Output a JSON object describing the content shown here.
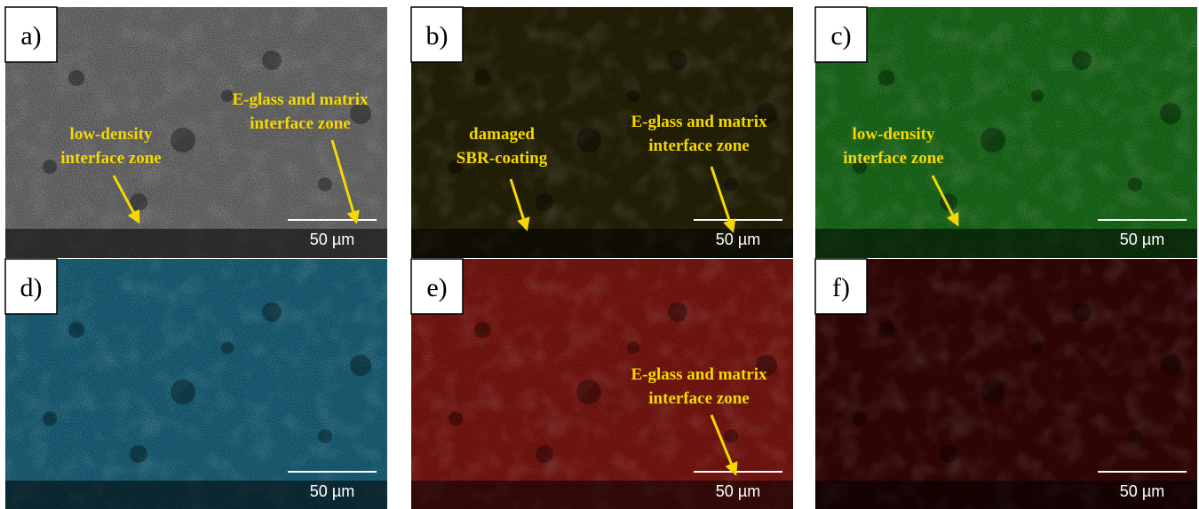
{
  "panels": [
    {
      "label": "a)",
      "color": "#7a7a7a",
      "scale_bar": "50 µm",
      "annotations": [
        {
          "lines": [
            "E-glass and matrix",
            "interface zone"
          ]
        },
        {
          "lines": [
            "low-density",
            "interface zone"
          ]
        }
      ]
    },
    {
      "label": "b)",
      "color": "#2a2608",
      "scale_bar": "50 µm",
      "annotations": [
        {
          "lines": [
            "damaged",
            "SBR-coating"
          ]
        },
        {
          "lines": [
            "E-glass and matrix",
            "interface zone"
          ]
        }
      ]
    },
    {
      "label": "c)",
      "color": "#1f7a1f",
      "scale_bar": "50 µm",
      "annotations": [
        {
          "lines": [
            "low-density",
            "interface zone"
          ]
        }
      ]
    },
    {
      "label": "d)",
      "color": "#1f6f8a",
      "scale_bar": "50 µm",
      "annotations": []
    },
    {
      "label": "e)",
      "color": "#8a1a14",
      "scale_bar": "50 µm",
      "annotations": [
        {
          "lines": [
            "E-glass and matrix",
            "interface zone"
          ]
        }
      ]
    },
    {
      "label": "f)",
      "color": "#3a0806",
      "scale_bar": "50 µm",
      "annotations": []
    }
  ]
}
